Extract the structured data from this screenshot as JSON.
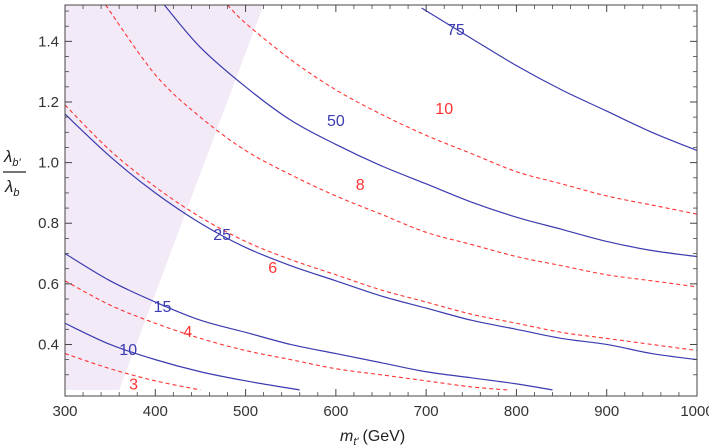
{
  "chart_data": {
    "type": "line",
    "xlabel": "m",
    "xlabel_sub": "t'",
    "xlabel_unit": "(GeV)",
    "ylabel_num": "λ",
    "ylabel_num_sub": "b'",
    "ylabel_den": "λ",
    "ylabel_den_sub": "b",
    "xlim": [
      300,
      1000
    ],
    "ylim": [
      0.23,
      1.52
    ],
    "xticks": [
      300,
      400,
      500,
      600,
      700,
      800,
      900,
      1000
    ],
    "yticks": [
      0.4,
      0.6,
      0.8,
      1.0,
      1.2,
      1.4
    ],
    "ytick_labels": [
      "0.4",
      "0.6",
      "0.8",
      "1.0",
      "1.2",
      "1.4"
    ],
    "grid": false,
    "colors": {
      "solid": "#3b3bb0",
      "dashed": "#ff3333",
      "shade": "#f3eaf7",
      "axis": "#444444"
    },
    "shaded_region": {
      "points": [
        [
          300,
          0.25
        ],
        [
          360,
          0.25
        ],
        [
          520,
          1.52
        ],
        [
          300,
          1.52
        ]
      ]
    },
    "series": [
      {
        "name": "10",
        "style": "solid",
        "x": [
          300,
          350,
          400,
          450,
          500,
          560
        ],
        "y": [
          0.47,
          0.4,
          0.35,
          0.31,
          0.28,
          0.25
        ]
      },
      {
        "name": "15",
        "style": "solid",
        "x": [
          300,
          350,
          400,
          450,
          500,
          550,
          600,
          650,
          700,
          750,
          800,
          840
        ],
        "y": [
          0.7,
          0.61,
          0.54,
          0.48,
          0.44,
          0.4,
          0.37,
          0.34,
          0.31,
          0.29,
          0.27,
          0.25
        ]
      },
      {
        "name": "25",
        "style": "solid",
        "x": [
          300,
          350,
          400,
          450,
          500,
          550,
          600,
          650,
          700,
          750,
          800,
          850,
          900,
          950,
          1000
        ],
        "y": [
          1.16,
          1.02,
          0.9,
          0.8,
          0.72,
          0.66,
          0.61,
          0.56,
          0.52,
          0.48,
          0.45,
          0.42,
          0.4,
          0.37,
          0.35
        ]
      },
      {
        "name": "50",
        "style": "solid",
        "x": [
          410,
          450,
          500,
          550,
          600,
          650,
          700,
          750,
          800,
          850,
          900,
          950,
          1000
        ],
        "y": [
          1.52,
          1.38,
          1.25,
          1.14,
          1.06,
          0.99,
          0.93,
          0.87,
          0.82,
          0.78,
          0.74,
          0.71,
          0.69
        ]
      },
      {
        "name": "75",
        "style": "solid",
        "x": [
          695,
          750,
          800,
          850,
          900,
          950,
          1000
        ],
        "y": [
          1.51,
          1.41,
          1.32,
          1.24,
          1.17,
          1.1,
          1.04
        ]
      },
      {
        "name": "3",
        "style": "dashed",
        "x": [
          300,
          350,
          400,
          450
        ],
        "y": [
          0.37,
          0.32,
          0.28,
          0.25
        ]
      },
      {
        "name": "4",
        "style": "dashed",
        "x": [
          300,
          350,
          400,
          450,
          500,
          550,
          600,
          650,
          700,
          750,
          790
        ],
        "y": [
          0.61,
          0.53,
          0.47,
          0.42,
          0.38,
          0.35,
          0.32,
          0.3,
          0.28,
          0.26,
          0.25
        ]
      },
      {
        "name": "6",
        "style": "dashed",
        "x": [
          300,
          350,
          400,
          450,
          500,
          550,
          600,
          650,
          700,
          750,
          800,
          850,
          900,
          950,
          1000
        ],
        "y": [
          1.19,
          1.04,
          0.92,
          0.82,
          0.74,
          0.68,
          0.63,
          0.58,
          0.54,
          0.5,
          0.47,
          0.44,
          0.42,
          0.4,
          0.38
        ]
      },
      {
        "name": "8",
        "style": "dashed",
        "x": [
          345,
          400,
          450,
          500,
          550,
          600,
          650,
          700,
          750,
          800,
          850,
          900,
          950,
          1000
        ],
        "y": [
          1.52,
          1.29,
          1.15,
          1.04,
          0.96,
          0.89,
          0.83,
          0.77,
          0.73,
          0.69,
          0.66,
          0.63,
          0.61,
          0.59
        ]
      },
      {
        "name": "10",
        "style": "dashed",
        "x": [
          480,
          500,
          550,
          600,
          650,
          700,
          750,
          800,
          850,
          900,
          950,
          1000
        ],
        "y": [
          1.52,
          1.46,
          1.34,
          1.24,
          1.16,
          1.09,
          1.03,
          0.97,
          0.93,
          0.89,
          0.86,
          0.83
        ]
      }
    ],
    "annotations": [
      {
        "text": "10",
        "color": "solid",
        "x": 370,
        "y": 0.385
      },
      {
        "text": "15",
        "color": "solid",
        "x": 408,
        "y": 0.527
      },
      {
        "text": "25",
        "color": "solid",
        "x": 474,
        "y": 0.765
      },
      {
        "text": "50",
        "color": "solid",
        "x": 600,
        "y": 1.14
      },
      {
        "text": "75",
        "color": "solid",
        "x": 733,
        "y": 1.44
      },
      {
        "text": "3",
        "color": "dashed",
        "x": 376,
        "y": 0.272
      },
      {
        "text": "4",
        "color": "dashed",
        "x": 436,
        "y": 0.445
      },
      {
        "text": "6",
        "color": "dashed",
        "x": 530,
        "y": 0.655
      },
      {
        "text": "8",
        "color": "dashed",
        "x": 627,
        "y": 0.93
      },
      {
        "text": "10",
        "color": "dashed",
        "x": 720,
        "y": 1.18
      }
    ]
  }
}
